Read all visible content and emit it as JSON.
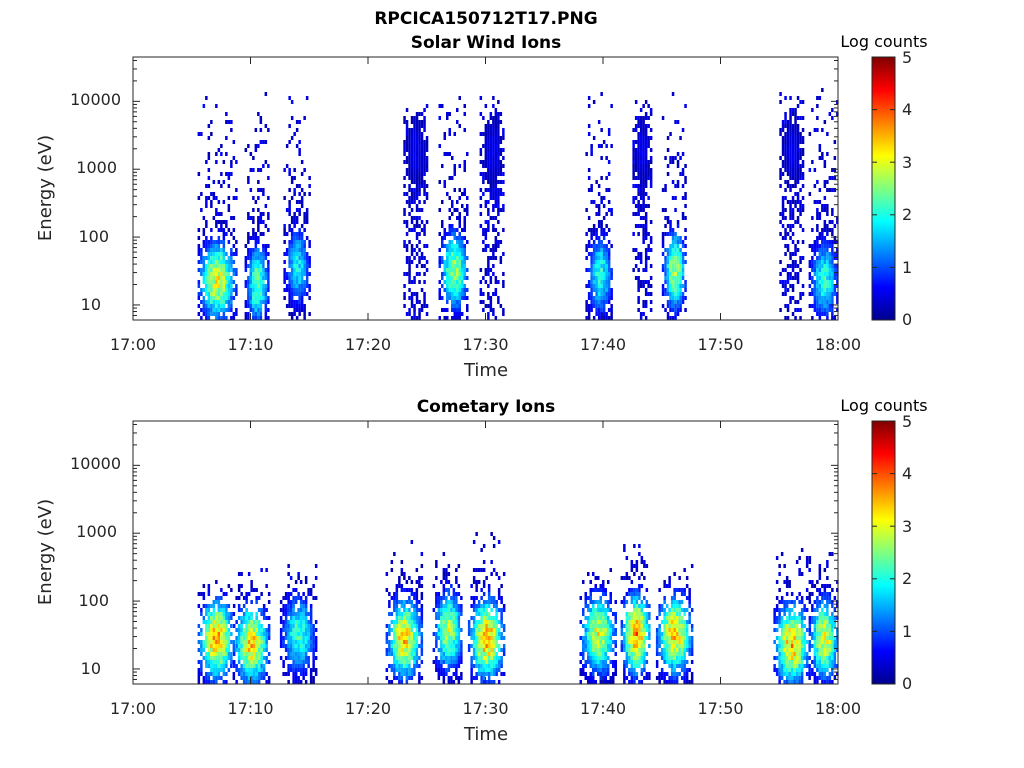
{
  "figure": {
    "title": "RPCICA150712T17.PNG"
  },
  "colors": {
    "colormap": "jet",
    "axis": "#262626",
    "background": "#ffffff"
  },
  "chart_data": [
    {
      "type": "heatmap",
      "title": "Solar Wind Ions",
      "xlabel": "Time",
      "ylabel": "Energy (eV)",
      "x_ticks": [
        "17:00",
        "17:10",
        "17:20",
        "17:30",
        "17:40",
        "17:50",
        "18:00"
      ],
      "xlim": [
        "17:00",
        "18:00"
      ],
      "y_scale": "log",
      "y_ticks": [
        "10",
        "100",
        "1000",
        "10000"
      ],
      "ylim": [
        6,
        45000
      ],
      "colorbar": {
        "label": "Log counts",
        "ticks": [
          "0",
          "1",
          "2",
          "3",
          "4",
          "5"
        ],
        "range": [
          0,
          5
        ]
      },
      "bursts": [
        {
          "start_min": 5.5,
          "end_min": 8.7,
          "peak_energy_ev": 25,
          "max_log_counts": 3.2,
          "top_energy_ev": 12000
        },
        {
          "start_min": 9.5,
          "end_min": 11.5,
          "peak_energy_ev": 22,
          "max_log_counts": 2.6,
          "top_energy_ev": 14000
        },
        {
          "start_min": 12.8,
          "end_min": 15.0,
          "peak_energy_ev": 40,
          "max_log_counts": 2.0,
          "top_energy_ev": 14000
        },
        {
          "start_min": 23.0,
          "end_min": 25.0,
          "peak_energy_ev": 2000,
          "max_log_counts": 0.6,
          "top_energy_ev": 9000
        },
        {
          "start_min": 26.0,
          "end_min": 28.5,
          "peak_energy_ev": 35,
          "max_log_counts": 2.8,
          "top_energy_ev": 14000
        },
        {
          "start_min": 29.5,
          "end_min": 31.5,
          "peak_energy_ev": 2000,
          "max_log_counts": 0.6,
          "top_energy_ev": 15000
        },
        {
          "start_min": 38.5,
          "end_min": 40.8,
          "peak_energy_ev": 30,
          "max_log_counts": 2.2,
          "top_energy_ev": 14000
        },
        {
          "start_min": 42.5,
          "end_min": 44.0,
          "peak_energy_ev": 2000,
          "max_log_counts": 0.6,
          "top_energy_ev": 10000
        },
        {
          "start_min": 45.0,
          "end_min": 47.0,
          "peak_energy_ev": 35,
          "max_log_counts": 2.9,
          "top_energy_ev": 15000
        },
        {
          "start_min": 55.0,
          "end_min": 57.0,
          "peak_energy_ev": 2000,
          "max_log_counts": 0.6,
          "top_energy_ev": 14000
        },
        {
          "start_min": 57.5,
          "end_min": 60.0,
          "peak_energy_ev": 25,
          "max_log_counts": 2.2,
          "top_energy_ev": 15000
        }
      ]
    },
    {
      "type": "heatmap",
      "title": "Cometary Ions",
      "xlabel": "Time",
      "ylabel": "Energy (eV)",
      "x_ticks": [
        "17:00",
        "17:10",
        "17:20",
        "17:30",
        "17:40",
        "17:50",
        "18:00"
      ],
      "xlim": [
        "17:00",
        "18:00"
      ],
      "y_scale": "log",
      "y_ticks": [
        "10",
        "100",
        "1000",
        "10000"
      ],
      "ylim": [
        6,
        45000
      ],
      "colorbar": {
        "label": "Log counts",
        "ticks": [
          "0",
          "1",
          "2",
          "3",
          "4",
          "5"
        ],
        "range": [
          0,
          5
        ]
      },
      "bursts": [
        {
          "start_min": 5.5,
          "end_min": 8.5,
          "peak_energy_ev": 30,
          "max_log_counts": 3.8,
          "top_energy_ev": 200
        },
        {
          "start_min": 8.5,
          "end_min": 11.5,
          "peak_energy_ev": 25,
          "max_log_counts": 3.5,
          "top_energy_ev": 300
        },
        {
          "start_min": 12.5,
          "end_min": 15.5,
          "peak_energy_ev": 35,
          "max_log_counts": 2.3,
          "top_energy_ev": 350
        },
        {
          "start_min": 21.5,
          "end_min": 24.5,
          "peak_energy_ev": 30,
          "max_log_counts": 3.6,
          "top_energy_ev": 800
        },
        {
          "start_min": 25.5,
          "end_min": 28.0,
          "peak_energy_ev": 40,
          "max_log_counts": 3.0,
          "top_energy_ev": 500
        },
        {
          "start_min": 28.5,
          "end_min": 31.5,
          "peak_energy_ev": 30,
          "max_log_counts": 3.8,
          "top_energy_ev": 1000
        },
        {
          "start_min": 38.0,
          "end_min": 41.0,
          "peak_energy_ev": 35,
          "max_log_counts": 3.2,
          "top_energy_ev": 400
        },
        {
          "start_min": 41.5,
          "end_min": 44.0,
          "peak_energy_ev": 35,
          "max_log_counts": 3.9,
          "top_energy_ev": 1000
        },
        {
          "start_min": 44.5,
          "end_min": 47.5,
          "peak_energy_ev": 35,
          "max_log_counts": 3.6,
          "top_energy_ev": 350
        },
        {
          "start_min": 54.5,
          "end_min": 57.5,
          "peak_energy_ev": 25,
          "max_log_counts": 3.7,
          "top_energy_ev": 600
        },
        {
          "start_min": 57.5,
          "end_min": 60.0,
          "peak_energy_ev": 30,
          "max_log_counts": 3.3,
          "top_energy_ev": 500
        }
      ]
    }
  ]
}
